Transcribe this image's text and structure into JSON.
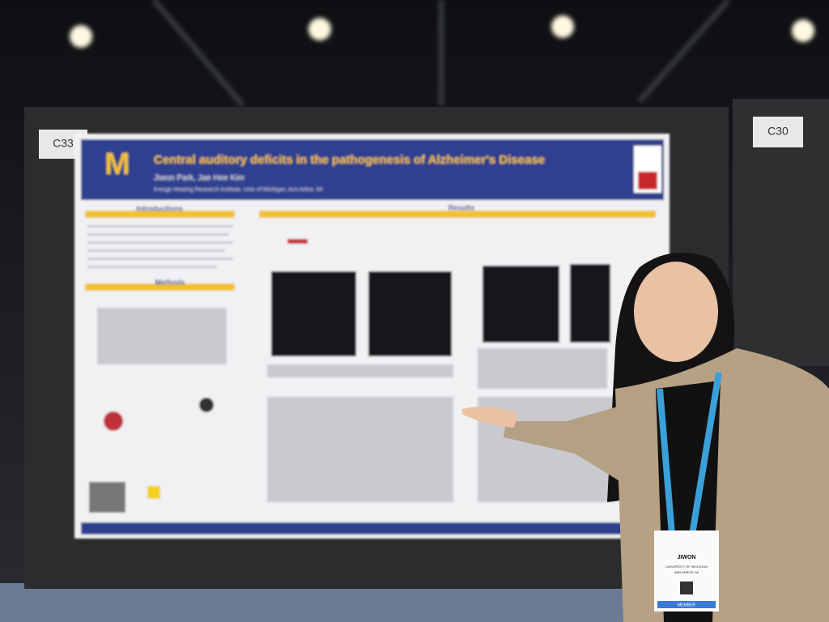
{
  "booths": [
    "C33",
    "C30"
  ],
  "poster": {
    "logo": "M",
    "title": "Central auditory deficits in the pathogenesis of Alzheimer's Disease",
    "authors": "Jiwon Park, Jae Hee Kim",
    "affiliation": "Kresge Hearing Research Institute, Univ of Michigan, Ann Arbor, MI",
    "sections": [
      "Introductions",
      "Methods",
      "Results"
    ]
  },
  "badge": {
    "name": "JIWON",
    "lines": [
      "UNIVERSITY OF MICHIGAN",
      "ANN ARBOR, MI"
    ],
    "role": "MEMBER"
  }
}
